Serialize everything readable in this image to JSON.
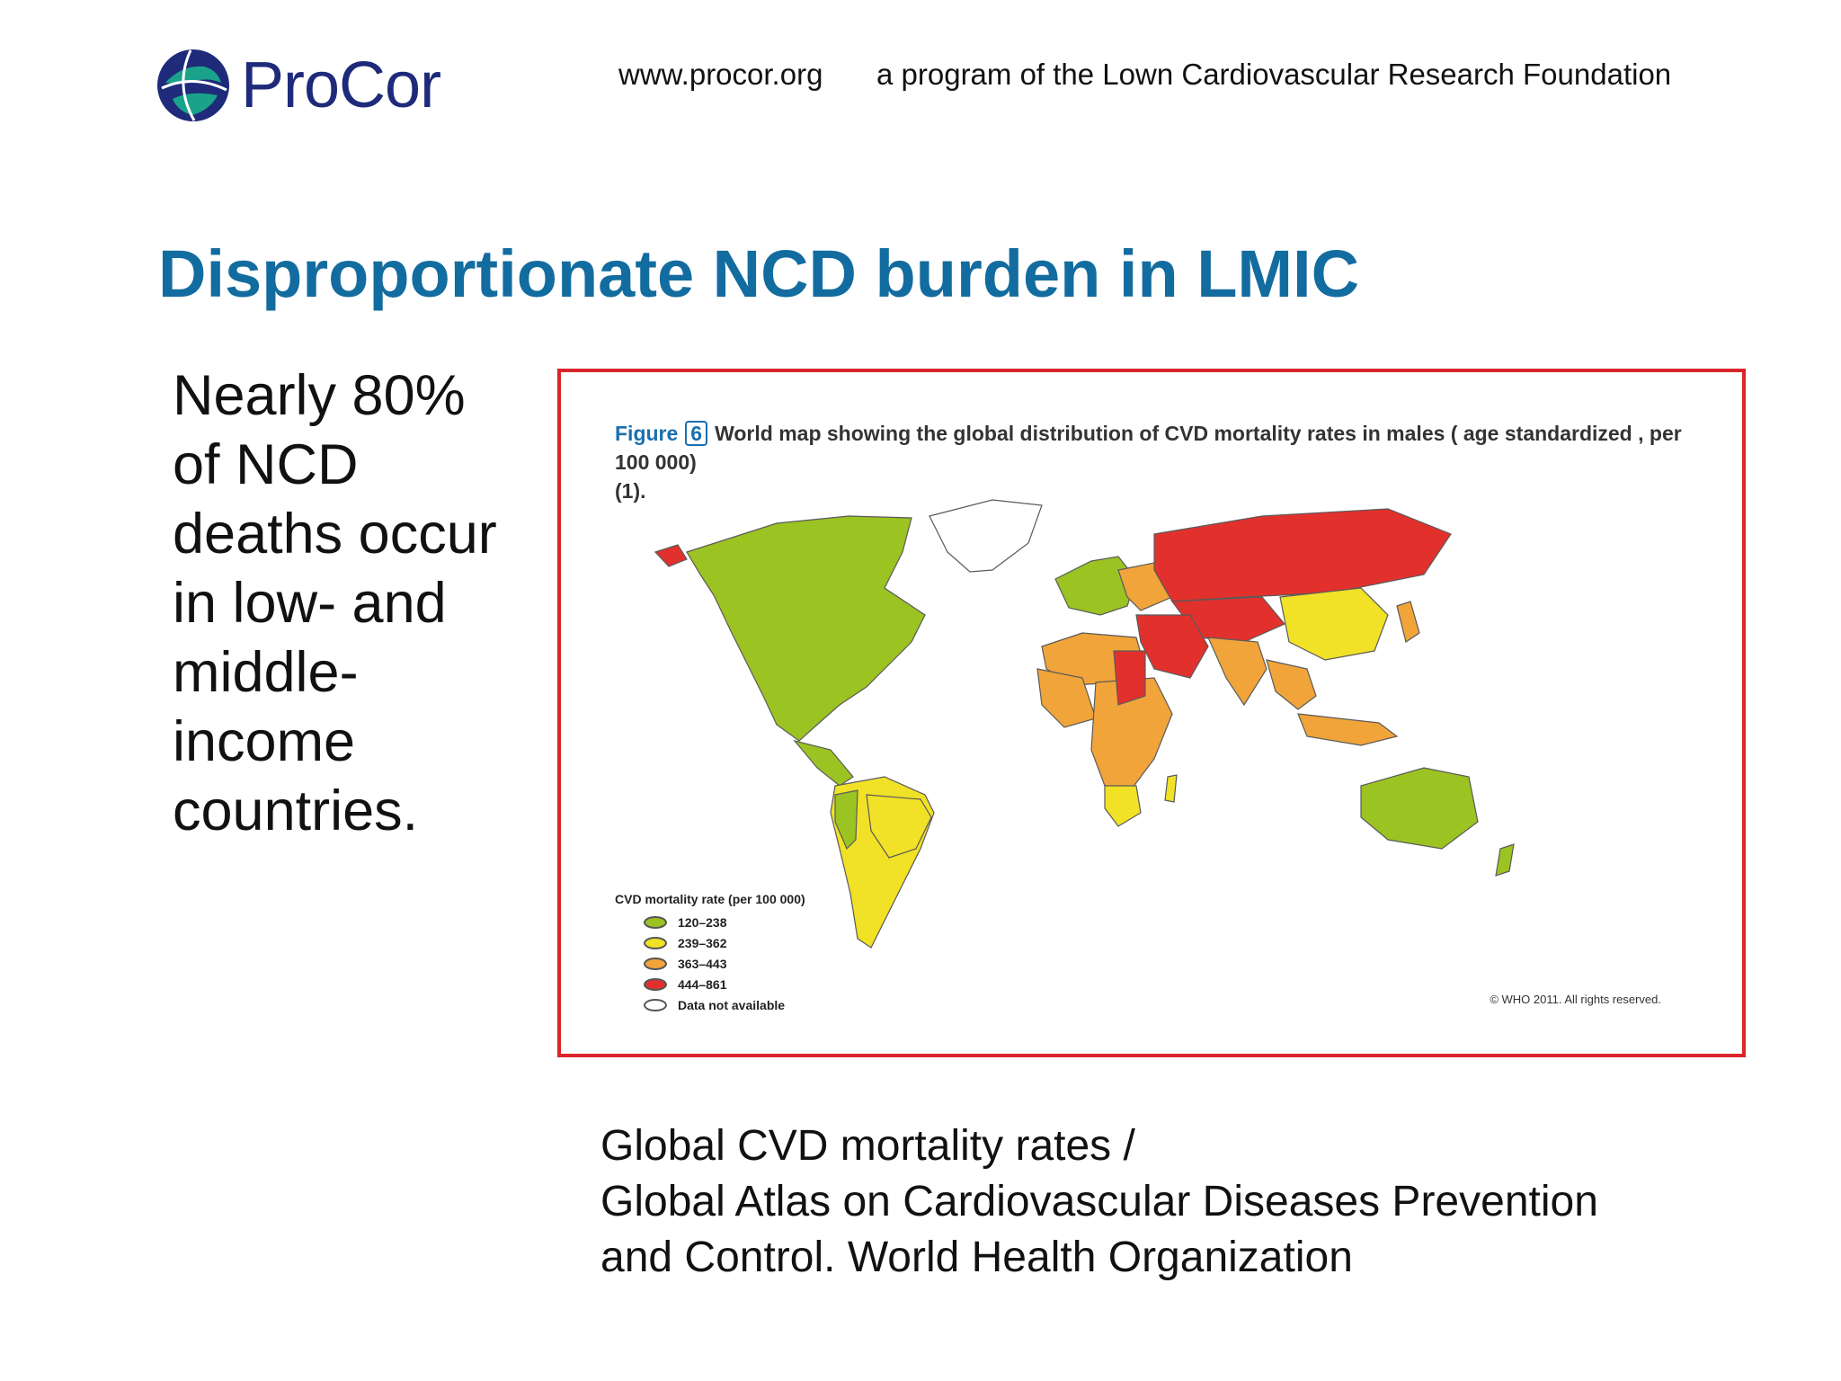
{
  "header": {
    "logo_text": "ProCor",
    "site_url": "www.procor.org",
    "program_text": "a program of the Lown Cardiovascular Research Foundation"
  },
  "slide": {
    "title": "Disproportionate NCD burden in LMIC",
    "body_lines": [
      "Nearly 80%",
      "of NCD",
      "deaths occur",
      "in low- and",
      "middle-",
      "income",
      "countries."
    ]
  },
  "figure": {
    "label": "Figure",
    "number": "6",
    "caption": "World map showing the global distribution of CVD mortality rates in males ( age standardized , per 100 000)",
    "caption_ref": "(1).",
    "legend_title": "CVD mortality rate (per 100 000)",
    "legend": [
      {
        "label": "120–238",
        "color": "#9bc322"
      },
      {
        "label": "239–362",
        "color": "#f1e127"
      },
      {
        "label": "363–443",
        "color": "#f1a43a"
      },
      {
        "label": "444–861",
        "color": "#e2312d"
      },
      {
        "label": "Data not available",
        "color": "#ffffff"
      }
    ],
    "copyright": "© WHO 2011. All rights reserved."
  },
  "source": {
    "lines": [
      "Global CVD mortality rates /",
      "Global Atlas on Cardiovascular Diseases Prevention",
      "and Control. World Health Organization"
    ]
  }
}
